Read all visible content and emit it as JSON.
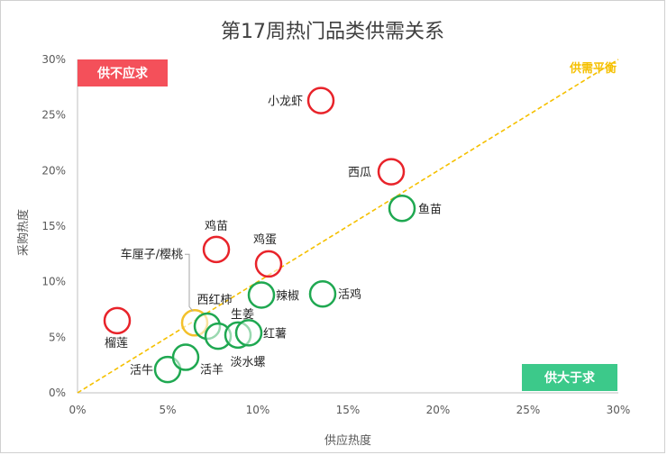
{
  "chart_data": {
    "type": "scatter",
    "title": "第17周热门品类供需关系",
    "xlabel": "供应热度",
    "ylabel": "采购热度",
    "xlim": [
      0,
      0.3
    ],
    "ylim": [
      0,
      0.3
    ],
    "x_ticks": [
      "0%",
      "5%",
      "10%",
      "15%",
      "20%",
      "25%",
      "30%"
    ],
    "y_ticks": [
      "0%",
      "5%",
      "10%",
      "15%",
      "20%",
      "25%",
      "30%"
    ],
    "grid": false,
    "balance_line": {
      "label": "供需平衡",
      "color": "#f5c000"
    },
    "quadrant_labels": {
      "top_left": {
        "text": "供不应求",
        "color": "#f4505a"
      },
      "bottom_right": {
        "text": "供大于求",
        "color": "#3cc98a"
      }
    },
    "status_colors": {
      "shortage": "#e8232a",
      "balanced": "#f3c12b",
      "surplus": "#1fa851"
    },
    "points": [
      {
        "name": "小龙虾",
        "x": 0.135,
        "y": 0.263,
        "status": "shortage"
      },
      {
        "name": "西瓜",
        "x": 0.174,
        "y": 0.199,
        "status": "shortage"
      },
      {
        "name": "鱼苗",
        "x": 0.18,
        "y": 0.166,
        "status": "surplus"
      },
      {
        "name": "鸡苗",
        "x": 0.077,
        "y": 0.129,
        "status": "shortage"
      },
      {
        "name": "鸡蛋",
        "x": 0.106,
        "y": 0.116,
        "status": "shortage"
      },
      {
        "name": "辣椒",
        "x": 0.102,
        "y": 0.088,
        "status": "surplus"
      },
      {
        "name": "活鸡",
        "x": 0.136,
        "y": 0.089,
        "status": "surplus"
      },
      {
        "name": "车厘子/樱桃",
        "x": 0.065,
        "y": 0.063,
        "status": "balanced"
      },
      {
        "name": "西红柿",
        "x": 0.072,
        "y": 0.06,
        "status": "surplus"
      },
      {
        "name": "生姜",
        "x": 0.078,
        "y": 0.051,
        "status": "surplus"
      },
      {
        "name": "淡水螺",
        "x": 0.089,
        "y": 0.052,
        "status": "surplus"
      },
      {
        "name": "红薯",
        "x": 0.095,
        "y": 0.054,
        "status": "surplus"
      },
      {
        "name": "榴莲",
        "x": 0.022,
        "y": 0.065,
        "status": "shortage"
      },
      {
        "name": "活牛",
        "x": 0.05,
        "y": 0.021,
        "status": "surplus"
      },
      {
        "name": "活羊",
        "x": 0.06,
        "y": 0.032,
        "status": "surplus"
      }
    ]
  }
}
